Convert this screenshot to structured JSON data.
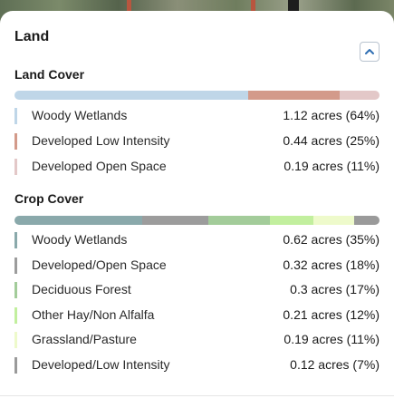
{
  "panel": {
    "title": "Land",
    "collapse_icon": "chevron-up-icon"
  },
  "colors": {
    "accent": "#2f6fb3"
  },
  "land_cover": {
    "title": "Land Cover",
    "items": [
      {
        "label": "Woody Wetlands",
        "value": "1.12 acres (64%)",
        "percent": 64,
        "color": "#bfd6e8"
      },
      {
        "label": "Developed Low Intensity",
        "value": "0.44 acres (25%)",
        "percent": 25,
        "color": "#d39a8a"
      },
      {
        "label": "Developed Open Space",
        "value": "0.19 acres (11%)",
        "percent": 11,
        "color": "#e3c8c8"
      }
    ]
  },
  "crop_cover": {
    "title": "Crop Cover",
    "items": [
      {
        "label": "Woody Wetlands",
        "value": "0.62 acres (35%)",
        "percent": 35,
        "color": "#8aa9ab"
      },
      {
        "label": "Developed/Open Space",
        "value": "0.32 acres (18%)",
        "percent": 18,
        "color": "#9c9c9c"
      },
      {
        "label": "Deciduous Forest",
        "value": "0.3 acres (17%)",
        "percent": 17,
        "color": "#a3cc9a"
      },
      {
        "label": "Other Hay/Non Alfalfa",
        "value": "0.21 acres (12%)",
        "percent": 12,
        "color": "#c2ef9e"
      },
      {
        "label": "Grassland/Pasture",
        "value": "0.19 acres (11%)",
        "percent": 11,
        "color": "#eefacb"
      },
      {
        "label": "Developed/Low Intensity",
        "value": "0.12 acres (7%)",
        "percent": 7,
        "color": "#9a9a9a"
      }
    ]
  }
}
